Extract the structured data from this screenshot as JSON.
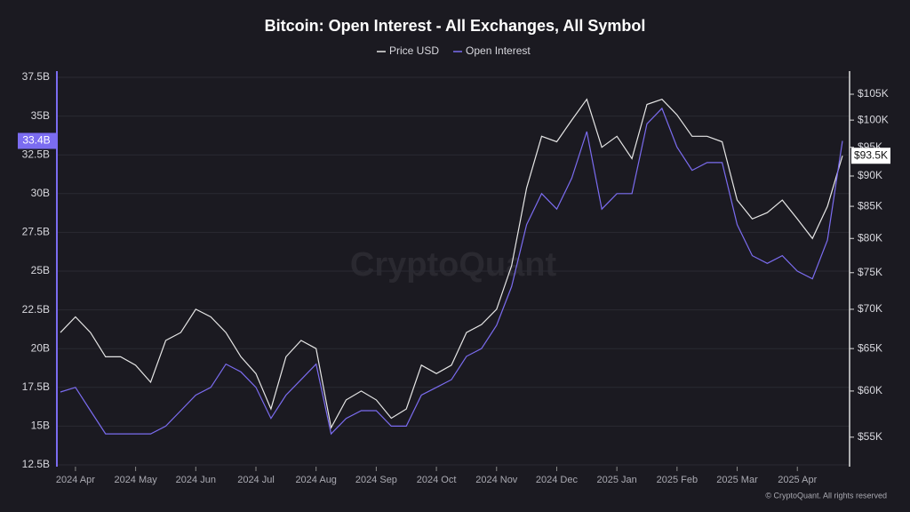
{
  "chart_data": {
    "type": "line",
    "title": "Bitcoin: Open Interest - All Exchanges, All Symbol",
    "watermark": "CryptoQuant",
    "footnote": "© CryptoQuant. All rights reserved",
    "categories": [
      null,
      "2024 Apr",
      null,
      null,
      null,
      "2024 May",
      null,
      null,
      null,
      "2024 Jun",
      null,
      null,
      null,
      "2024 Jul",
      null,
      null,
      null,
      "2024 Aug",
      null,
      null,
      null,
      "2024 Sep",
      null,
      null,
      null,
      "2024 Oct",
      null,
      null,
      null,
      "2024 Nov",
      null,
      null,
      null,
      "2024 Dec",
      null,
      null,
      null,
      "2025 Jan",
      null,
      null,
      null,
      "2025 Feb",
      null,
      null,
      null,
      "2025 Mar",
      null,
      null,
      null,
      "2025 Apr",
      null,
      null,
      null
    ],
    "series": [
      {
        "name": "Price USD",
        "color": "#e6e6e6",
        "axis": "y2",
        "values": [
          67000,
          69000,
          67000,
          64000,
          64000,
          63000,
          61000,
          66000,
          67000,
          70000,
          69000,
          67000,
          64000,
          62000,
          58000,
          64000,
          66000,
          65000,
          56000,
          59000,
          60000,
          59000,
          57000,
          58000,
          63000,
          62000,
          63000,
          67000,
          68000,
          70000,
          76000,
          88000,
          97000,
          96000,
          100000,
          104000,
          95000,
          97000,
          93000,
          103000,
          104000,
          101000,
          97000,
          97000,
          96000,
          86000,
          83000,
          84000,
          86000,
          83000,
          80000,
          85000,
          93500
        ],
        "value_labels": [
          null,
          null,
          null,
          null,
          null,
          null,
          null,
          null,
          null,
          null,
          null,
          null,
          null,
          null,
          null,
          null,
          null,
          null,
          null,
          null,
          null,
          null,
          null,
          null,
          null,
          null,
          null,
          null,
          null,
          null,
          null,
          null,
          null,
          null,
          null,
          null,
          null,
          null,
          null,
          null,
          null,
          null,
          null,
          null,
          null,
          null,
          null,
          null,
          null,
          null,
          null,
          null,
          "$93.5K"
        ]
      },
      {
        "name": "Open Interest",
        "color": "#7b6cf0",
        "values": [
          17.2,
          17.5,
          16,
          14.5,
          14.5,
          14.5,
          14.5,
          15,
          16,
          17,
          17.5,
          19,
          18.5,
          17.5,
          15.5,
          17,
          18,
          19,
          14.5,
          15.5,
          16,
          16,
          15,
          15,
          17,
          17.5,
          18,
          19.5,
          20,
          21.5,
          24,
          28,
          30,
          29,
          31,
          34,
          29,
          30,
          30,
          34.5,
          35.5,
          33,
          31.5,
          32,
          32,
          28,
          26,
          25.5,
          26,
          25,
          24.5,
          27,
          33.4
        ],
        "value_labels": [
          null,
          null,
          null,
          null,
          null,
          null,
          null,
          null,
          null,
          null,
          null,
          null,
          null,
          null,
          null,
          null,
          null,
          null,
          null,
          null,
          null,
          null,
          null,
          null,
          null,
          null,
          null,
          null,
          null,
          null,
          null,
          null,
          null,
          null,
          null,
          null,
          null,
          null,
          null,
          null,
          null,
          null,
          null,
          null,
          null,
          null,
          null,
          null,
          null,
          null,
          null,
          null,
          "33.4B"
        ]
      }
    ],
    "ylim": [
      12.5,
      37.5
    ],
    "yticks": [
      {
        "value": 12.5,
        "label": "12.5B"
      },
      {
        "value": 15,
        "label": "15B"
      },
      {
        "value": 17.5,
        "label": "17.5B"
      },
      {
        "value": 20,
        "label": "20B"
      },
      {
        "value": 22.5,
        "label": "22.5B"
      },
      {
        "value": 25,
        "label": "25B"
      },
      {
        "value": 27.5,
        "label": "27.5B"
      },
      {
        "value": 30,
        "label": "30B"
      },
      {
        "value": 32.5,
        "label": "32.5B"
      },
      {
        "value": 35,
        "label": "35B"
      },
      {
        "value": 37.5,
        "label": "37.5B"
      }
    ],
    "y2lim": [
      52200,
      108400
    ],
    "y2log": true,
    "y2ticks": [
      {
        "value": 55000,
        "label": "$55K"
      },
      {
        "value": 60000,
        "label": "$60K"
      },
      {
        "value": 65000,
        "label": "$65K"
      },
      {
        "value": 70000,
        "label": "$70K"
      },
      {
        "value": 75000,
        "label": "$75K"
      },
      {
        "value": 80000,
        "label": "$80K"
      },
      {
        "value": 85000,
        "label": "$85K"
      },
      {
        "value": 90000,
        "label": "$90K"
      },
      {
        "value": 95000,
        "label": "$95K"
      },
      {
        "value": 100000,
        "label": "$100K"
      },
      {
        "value": 105000,
        "label": "$105K"
      }
    ],
    "grid": true
  }
}
